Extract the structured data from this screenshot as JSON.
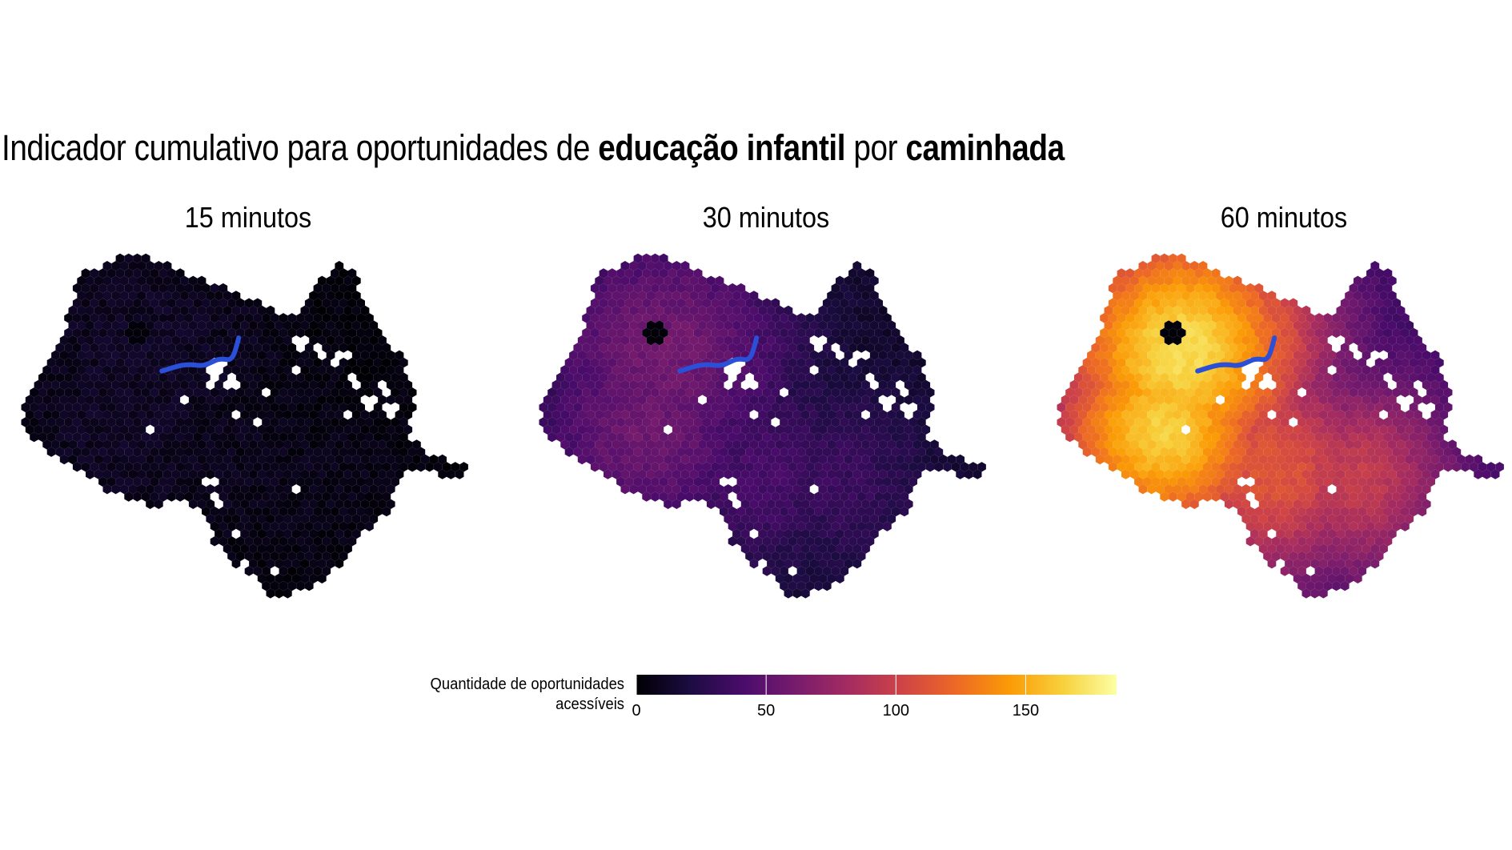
{
  "title": {
    "part1": "Indicador cumulativo para oportunidades de ",
    "bold1": "educação infantil",
    "part2": " por ",
    "bold2": "caminhada"
  },
  "panels": [
    {
      "label": "15 minutos",
      "intensity": 0.06,
      "hotspot": 0.03
    },
    {
      "label": "30 minutos",
      "intensity": 0.32,
      "hotspot": 0.12
    },
    {
      "label": "60 minutos",
      "intensity": 0.92,
      "hotspot": 0.55
    }
  ],
  "legend": {
    "title_line1": "Quantidade de oportunidades",
    "title_line2": "acessíveis",
    "ticks": [
      "0",
      "50",
      "100",
      "150"
    ],
    "tick_values": [
      0,
      50,
      100,
      150
    ],
    "min": 0,
    "max": 185,
    "palette": "inferno",
    "colors": [
      "#000004",
      "#1b0c41",
      "#4a0c6b",
      "#781c6d",
      "#a52c60",
      "#cf4446",
      "#ed6925",
      "#fb9b06",
      "#f7d13d",
      "#fcffa4"
    ]
  },
  "river_color": "#2b4fd6"
}
